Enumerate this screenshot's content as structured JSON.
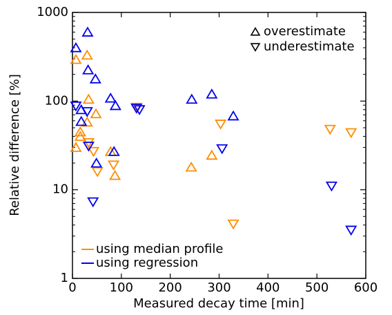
{
  "chart_data": {
    "type": "scatter",
    "xlabel": "Measured decay time [min]",
    "ylabel": "Relative difference [%]",
    "xlim": [
      0,
      600
    ],
    "xticks": [
      0,
      100,
      200,
      300,
      400,
      500,
      600
    ],
    "ylim": [
      1,
      1000
    ],
    "yticks": [
      1,
      10,
      100,
      1000
    ],
    "yscale": "log",
    "yminorticks": [
      2,
      3,
      4,
      5,
      6,
      7,
      8,
      9,
      20,
      30,
      40,
      50,
      60,
      70,
      80,
      90,
      200,
      300,
      400,
      500,
      600,
      700,
      800,
      900
    ],
    "markers": [
      {
        "label": "overestimate",
        "shape": "triangle-up"
      },
      {
        "label": "underestimate",
        "shape": "triangle-down"
      }
    ],
    "marker_legend_loc": "upper right",
    "legend_loc": "lower left",
    "series": [
      {
        "name": "using median profile",
        "color": "#ff8c00",
        "points": [
          {
            "x": [
              7,
              30,
              33,
              16,
              16,
              7,
              78,
              87,
              243,
              285,
              48,
              30
            ],
            "values": [
              295,
              330,
              105,
              45,
              40,
              30,
              27,
              14.5,
              18,
              24.5,
              72,
              58
            ]
          },
          {
            "x": [
              33,
              43,
              51,
              84,
              131,
              303,
              329,
              527,
              570
            ],
            "values": [
              34,
              27,
              16,
              19,
              85,
              55,
              4.1,
              48,
              44
            ]
          }
        ]
      },
      {
        "name": "using regression",
        "color": "#0000ee",
        "points": [
          {
            "x": [
              7,
              31,
              32,
              47,
              78,
              88,
              18,
              18,
              49,
              85,
              244,
              285,
              329
            ],
            "values": [
              400,
              600,
              225,
              178,
              108,
              89,
              80,
              59,
              20,
              27,
              105,
              120,
              68
            ]
          },
          {
            "x": [
              7,
              30,
              33,
              42,
              131,
              137,
              306,
              530,
              570
            ],
            "values": [
              88,
              76,
              31,
              7.3,
              83,
              80,
              29,
              11,
              3.5
            ]
          }
        ]
      }
    ]
  }
}
